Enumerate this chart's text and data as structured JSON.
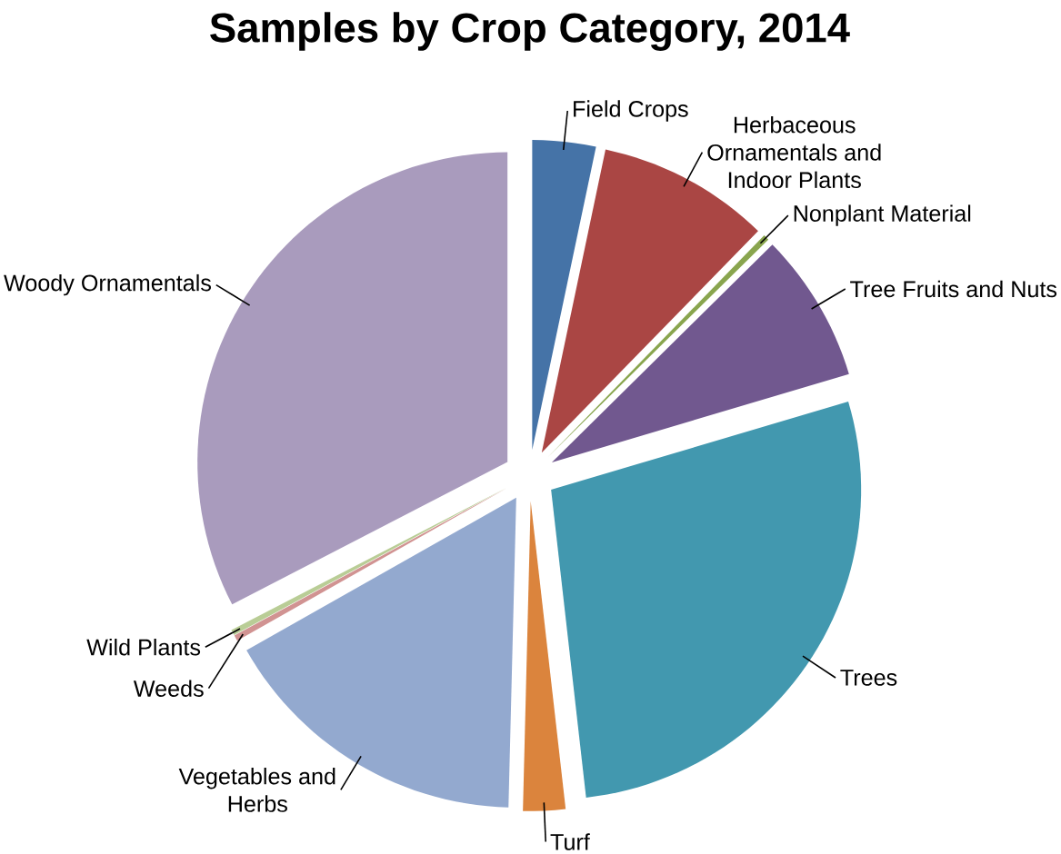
{
  "chart_data": {
    "type": "pie",
    "title": "Samples by Crop Category, 2014",
    "categories": [
      "Field Crops",
      "Herbaceous Ornamentals and Indoor Plants",
      "Nonplant Material",
      "Tree Fruits and Nuts",
      "Trees",
      "Turf",
      "Vegetables and Herbs",
      "Weeds",
      "Wild Plants",
      "Woody Ornamentals"
    ],
    "values": [
      3.3,
      9.0,
      0.3,
      7.8,
      27.8,
      2.2,
      16.4,
      0.3,
      0.3,
      32.6
    ],
    "colors": [
      "#4573a7",
      "#aa4644",
      "#89a54e",
      "#71588f",
      "#4298af",
      "#db843d",
      "#93a9cf",
      "#d19392",
      "#b9cd96",
      "#a99bbd"
    ]
  }
}
